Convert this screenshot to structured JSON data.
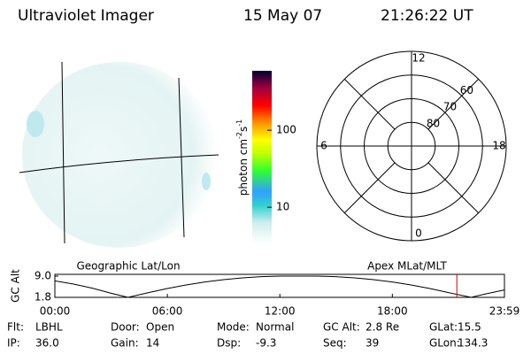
{
  "header": {
    "instrument": "Ultraviolet Imager",
    "date": "15 May 07",
    "time": "21:26:22 UT"
  },
  "colorbar": {
    "unit": "photon cm",
    "exp1": "-2",
    "unit2": "s",
    "exp2": "-1",
    "scale": "log",
    "lim": [
      3.4,
      590
    ],
    "ticks": [
      10,
      100
    ]
  },
  "polar": {
    "rlim": [
      90,
      50
    ],
    "lat_circles": [
      80,
      70,
      60
    ],
    "mlt_labels": [
      12,
      6,
      0,
      18
    ]
  },
  "chart_data": {
    "type": "line",
    "ylabel": "GC Alt",
    "left_label": "Geographic Lat/Lon",
    "right_label": "Apex MLat/MLT",
    "x": [
      0,
      1,
      2,
      3,
      3.9,
      5,
      6,
      7,
      8,
      9,
      10,
      11,
      12,
      13,
      14,
      15,
      16,
      17,
      18,
      19,
      20,
      21,
      22.2,
      23,
      23.98
    ],
    "values": [
      7.4,
      6.3,
      4.9,
      3.2,
      1.8,
      3.4,
      4.8,
      6.0,
      7.0,
      7.8,
      8.4,
      8.8,
      9.0,
      9.0,
      9.0,
      8.8,
      8.4,
      7.8,
      7.0,
      6.0,
      4.8,
      3.4,
      1.8,
      3.0,
      4.3
    ],
    "color": "#000000",
    "marker_x": 21.44,
    "marker_color": "#cc0000",
    "xlim": [
      0,
      23.98
    ],
    "ylim": [
      1.8,
      9.0
    ],
    "xticks": [
      {
        "value": 0,
        "label": "00:00"
      },
      {
        "value": 6,
        "label": "06:00"
      },
      {
        "value": 12,
        "label": "12:00"
      },
      {
        "value": 18,
        "label": "18:00"
      },
      {
        "value": 23.98,
        "label": "23:59"
      }
    ],
    "yticks": [
      {
        "value": 9.0,
        "label": "9.0"
      },
      1.8
    ]
  },
  "info": [
    [
      {
        "label": "Flt:",
        "value": "LBHL"
      },
      {
        "label": "Door:",
        "value": "Open"
      },
      {
        "label": "Mode:",
        "value": "Normal"
      },
      {
        "label": "GC Alt:",
        "value": "2.8 Re"
      },
      {
        "label": "GLat:",
        "value": "15.5"
      }
    ],
    [
      {
        "label": "IP:",
        "value": "36.0"
      },
      {
        "label": "Gain:",
        "value": "14"
      },
      {
        "label": "Dsp:",
        "value": "-9.3"
      },
      {
        "label": "Seq:",
        "value": "39"
      },
      {
        "label": "GLon:",
        "value": "134.3"
      }
    ]
  ]
}
